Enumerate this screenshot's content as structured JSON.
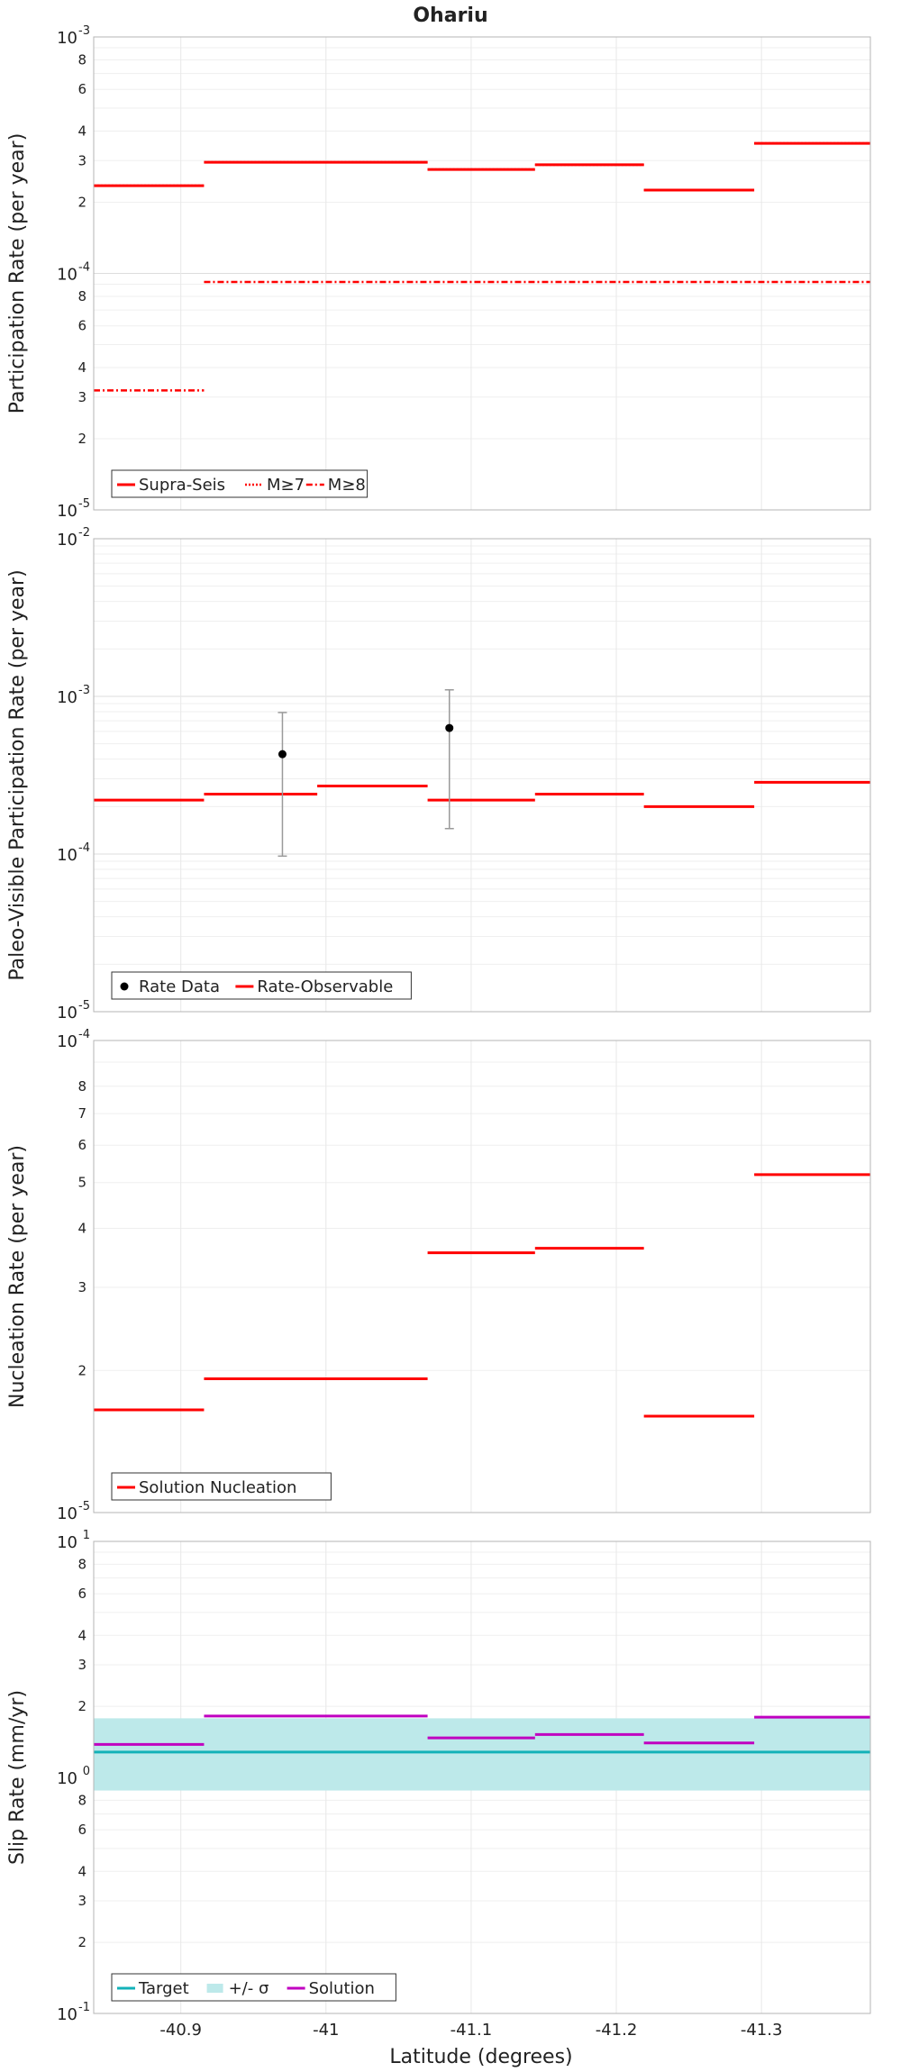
{
  "title": "Ohariu",
  "x_axis_label": "Latitude (degrees)",
  "x_ticks": [
    "-40.9",
    "-41",
    "-41.1",
    "-41.2",
    "-41.3"
  ],
  "x_tick_values": [
    -40.9,
    -41.0,
    -41.1,
    -41.2,
    -41.3
  ],
  "xlim": [
    -40.84,
    -41.375
  ],
  "segment_bounds": [
    -40.84,
    -40.916,
    -40.994,
    -41.07,
    -41.144,
    -41.219,
    -41.295,
    -41.375
  ],
  "colors": {
    "red": "#ff0000",
    "black": "#000000",
    "cyan": "#13b2b8",
    "band": "#bde9ea",
    "magenta": "#c000c0",
    "errorbar": "#9a9a9a"
  },
  "chart_data": [
    {
      "type": "line",
      "ylabel": "Participation Rate (per year)",
      "scale": "log",
      "ylim": [
        1e-05,
        0.001
      ],
      "y_major_ticks": [
        {
          "base": "10",
          "exp": "-3",
          "value": 0.001
        },
        {
          "base": "10",
          "exp": "-4",
          "value": 0.0001
        },
        {
          "base": "10",
          "exp": "-5",
          "value": 1e-05
        }
      ],
      "y_minor_labels": [
        {
          "label": "8",
          "value": 0.0008
        },
        {
          "label": "6",
          "value": 0.0006
        },
        {
          "label": "4",
          "value": 0.0004
        },
        {
          "label": "3",
          "value": 0.0003
        },
        {
          "label": "2",
          "value": 0.0002
        },
        {
          "label": "8",
          "value": 8e-05
        },
        {
          "label": "6",
          "value": 6e-05
        },
        {
          "label": "4",
          "value": 4e-05
        },
        {
          "label": "3",
          "value": 3e-05
        },
        {
          "label": "2",
          "value": 2e-05
        }
      ],
      "legend": [
        "Supra-Seis",
        "M≥7",
        "M≥8"
      ],
      "series": [
        {
          "name": "Supra-Seis",
          "style": "solid",
          "color": "#ff0000",
          "segments": [
            {
              "x0": -40.84,
              "x1": -40.916,
              "y": 0.000235
            },
            {
              "x0": -40.916,
              "x1": -41.07,
              "y": 0.000295
            },
            {
              "x0": -41.07,
              "x1": -41.144,
              "y": 0.000275
            },
            {
              "x0": -41.144,
              "x1": -41.219,
              "y": 0.000288
            },
            {
              "x0": -41.219,
              "x1": -41.295,
              "y": 0.000225
            },
            {
              "x0": -41.295,
              "x1": -41.375,
              "y": 0.000355
            }
          ]
        },
        {
          "name": "M≥7",
          "style": "dotted",
          "color": "#ff0000",
          "segments": [
            {
              "x0": -40.84,
              "x1": -40.916,
              "y": 0.000235
            },
            {
              "x0": -40.916,
              "x1": -41.07,
              "y": 0.000295
            },
            {
              "x0": -41.07,
              "x1": -41.144,
              "y": 0.000275
            },
            {
              "x0": -41.144,
              "x1": -41.219,
              "y": 0.000288
            },
            {
              "x0": -41.219,
              "x1": -41.295,
              "y": 0.000225
            },
            {
              "x0": -41.295,
              "x1": -41.375,
              "y": 0.000355
            }
          ]
        },
        {
          "name": "M≥8",
          "style": "dashdot",
          "color": "#ff0000",
          "segments": [
            {
              "x0": -40.84,
              "x1": -40.916,
              "y": 3.2e-05
            },
            {
              "x0": -40.916,
              "x1": -41.375,
              "y": 9.2e-05
            }
          ]
        }
      ]
    },
    {
      "type": "line",
      "ylabel": "Paleo-Visible Participation Rate (per year)",
      "scale": "log",
      "ylim": [
        1e-05,
        0.01
      ],
      "y_major_ticks": [
        {
          "base": "10",
          "exp": "-2",
          "value": 0.01
        },
        {
          "base": "10",
          "exp": "-3",
          "value": 0.001
        },
        {
          "base": "10",
          "exp": "-4",
          "value": 0.0001
        },
        {
          "base": "10",
          "exp": "-5",
          "value": 1e-05
        }
      ],
      "y_minor_labels": [],
      "legend": [
        "Rate Data",
        "Rate-Observable"
      ],
      "series": [
        {
          "name": "Rate-Observable",
          "style": "solid",
          "color": "#ff0000",
          "segments": [
            {
              "x0": -40.84,
              "x1": -40.916,
              "y": 0.00022
            },
            {
              "x0": -40.916,
              "x1": -40.994,
              "y": 0.00024
            },
            {
              "x0": -40.994,
              "x1": -41.07,
              "y": 0.00027
            },
            {
              "x0": -41.07,
              "x1": -41.144,
              "y": 0.00022
            },
            {
              "x0": -41.144,
              "x1": -41.219,
              "y": 0.00024
            },
            {
              "x0": -41.219,
              "x1": -41.295,
              "y": 0.0002
            },
            {
              "x0": -41.295,
              "x1": -41.375,
              "y": 0.000285
            }
          ]
        },
        {
          "name": "Rate Data",
          "style": "points",
          "color": "#000000",
          "points": [
            {
              "x": -40.97,
              "y": 0.00043,
              "low": 9.7e-05,
              "high": 0.00079
            },
            {
              "x": -41.085,
              "y": 0.00063,
              "low": 0.000145,
              "high": 0.0011
            }
          ]
        }
      ]
    },
    {
      "type": "line",
      "ylabel": "Nucleation Rate (per year)",
      "scale": "log",
      "ylim": [
        1e-05,
        0.0001
      ],
      "y_major_ticks": [
        {
          "base": "10",
          "exp": "-4",
          "value": 0.0001
        },
        {
          "base": "10",
          "exp": "-5",
          "value": 1e-05
        }
      ],
      "y_minor_labels": [
        {
          "label": "8",
          "value": 8e-05
        },
        {
          "label": "7",
          "value": 7e-05
        },
        {
          "label": "6",
          "value": 6e-05
        },
        {
          "label": "5",
          "value": 5e-05
        },
        {
          "label": "4",
          "value": 4e-05
        },
        {
          "label": "3",
          "value": 3e-05
        },
        {
          "label": "2",
          "value": 2e-05
        }
      ],
      "legend": [
        "Solution Nucleation"
      ],
      "series": [
        {
          "name": "Solution Nucleation",
          "style": "solid",
          "color": "#ff0000",
          "segments": [
            {
              "x0": -40.84,
              "x1": -40.916,
              "y": 1.65e-05
            },
            {
              "x0": -40.916,
              "x1": -41.07,
              "y": 1.92e-05
            },
            {
              "x0": -41.07,
              "x1": -41.144,
              "y": 3.55e-05
            },
            {
              "x0": -41.144,
              "x1": -41.219,
              "y": 3.63e-05
            },
            {
              "x0": -41.219,
              "x1": -41.295,
              "y": 1.6e-05
            },
            {
              "x0": -41.295,
              "x1": -41.375,
              "y": 5.2e-05
            }
          ]
        }
      ]
    },
    {
      "type": "line",
      "ylabel": "Slip Rate (mm/yr)",
      "scale": "log",
      "ylim": [
        0.1,
        10
      ],
      "y_major_ticks": [
        {
          "base": "10",
          "exp": "1",
          "value": 10
        },
        {
          "base": "10",
          "exp": "0",
          "value": 1
        },
        {
          "base": "10",
          "exp": "-1",
          "value": 0.1
        }
      ],
      "y_minor_labels": [
        {
          "label": "8",
          "value": 8
        },
        {
          "label": "6",
          "value": 6
        },
        {
          "label": "4",
          "value": 4
        },
        {
          "label": "3",
          "value": 3
        },
        {
          "label": "2",
          "value": 2
        },
        {
          "label": "8",
          "value": 0.8
        },
        {
          "label": "6",
          "value": 0.6
        },
        {
          "label": "4",
          "value": 0.4
        },
        {
          "label": "3",
          "value": 0.3
        },
        {
          "label": "2",
          "value": 0.2
        }
      ],
      "legend": [
        "Target",
        "+/- σ",
        "Solution"
      ],
      "band": {
        "low": 0.88,
        "high": 1.78
      },
      "series": [
        {
          "name": "Target",
          "style": "solid",
          "color": "#13b2b8",
          "segments": [
            {
              "x0": -40.84,
              "x1": -41.375,
              "y": 1.28
            }
          ]
        },
        {
          "name": "Solution",
          "style": "solid",
          "color": "#c000c0",
          "segments": [
            {
              "x0": -40.84,
              "x1": -40.916,
              "y": 1.38
            },
            {
              "x0": -40.916,
              "x1": -41.07,
              "y": 1.82
            },
            {
              "x0": -41.07,
              "x1": -41.144,
              "y": 1.47
            },
            {
              "x0": -41.144,
              "x1": -41.219,
              "y": 1.52
            },
            {
              "x0": -41.219,
              "x1": -41.295,
              "y": 1.4
            },
            {
              "x0": -41.295,
              "x1": -41.375,
              "y": 1.8
            }
          ]
        }
      ]
    }
  ]
}
